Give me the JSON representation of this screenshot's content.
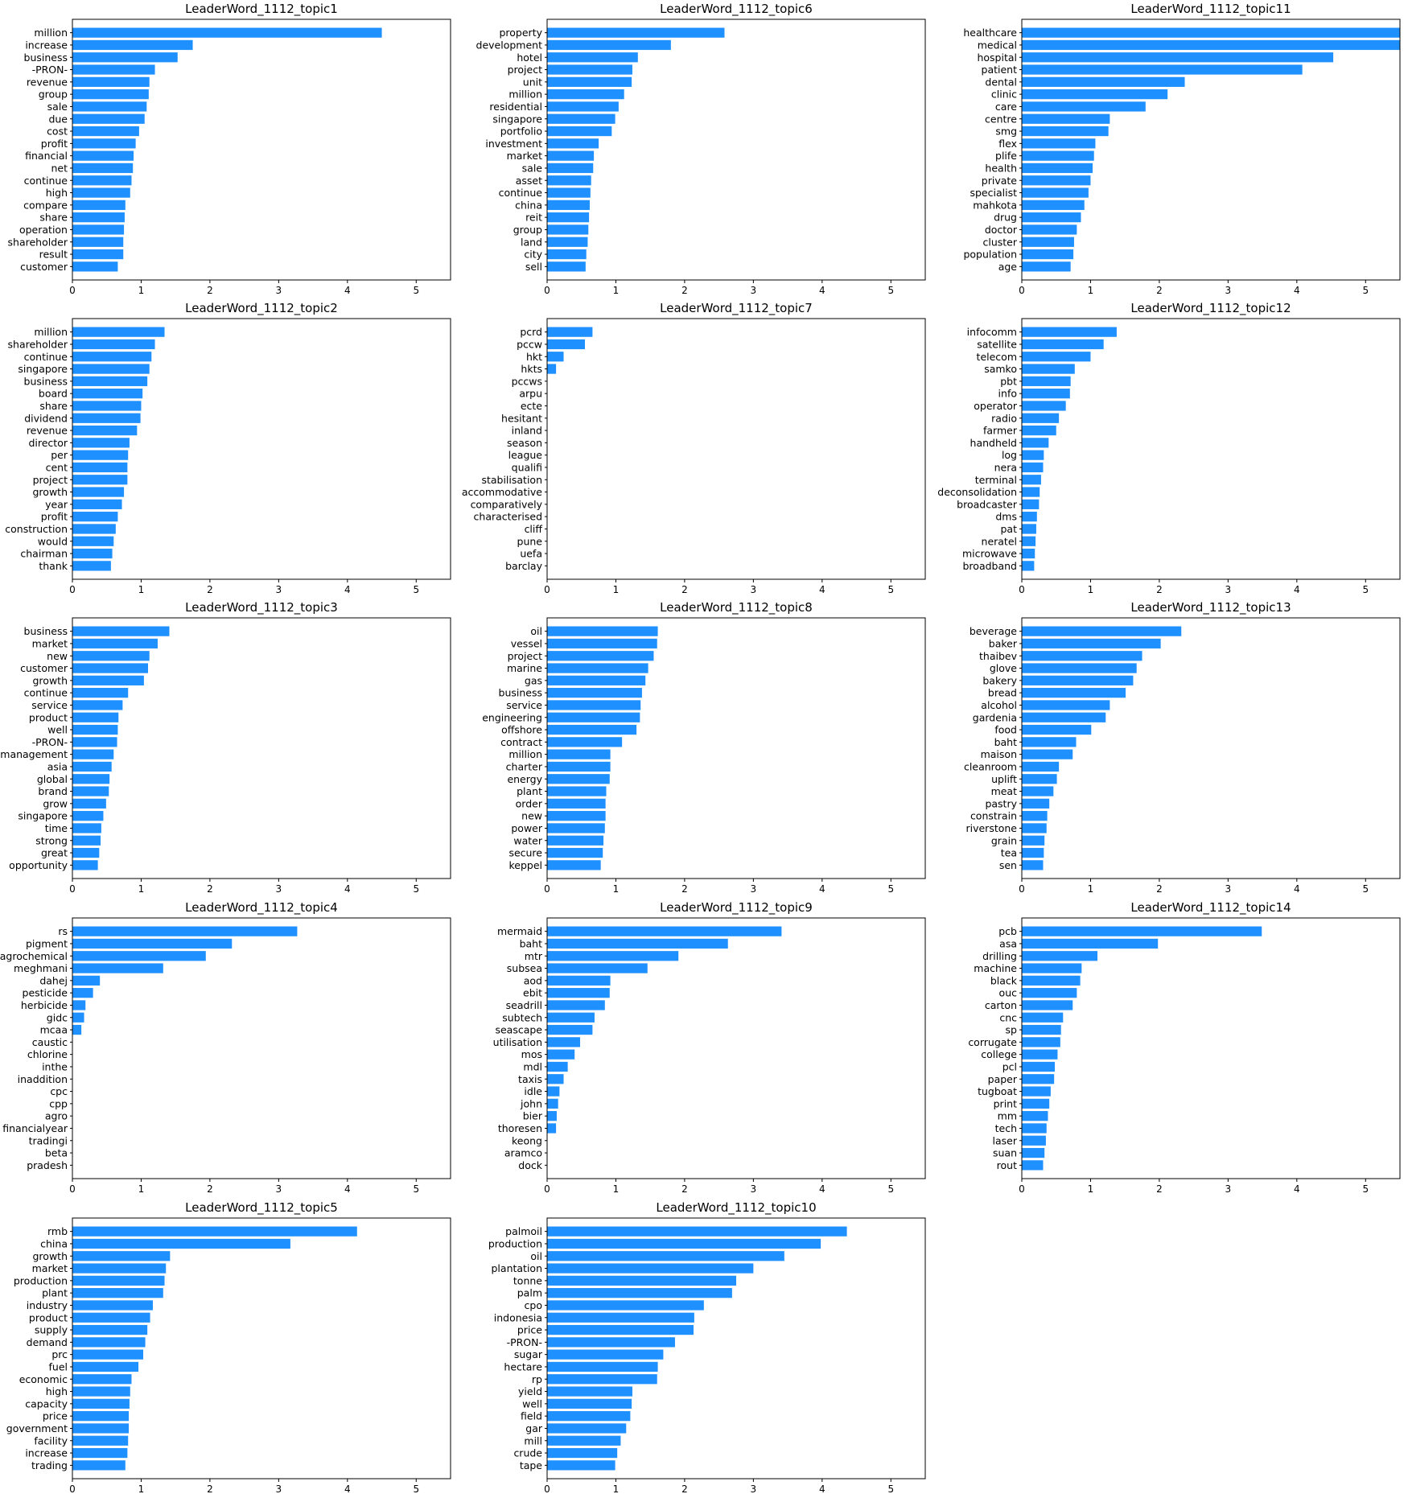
{
  "chart_data": [
    {
      "type": "bar",
      "orientation": "horizontal",
      "title": "LeaderWord_1112_topic1",
      "xlim": [
        0,
        5.5
      ],
      "xticks": [
        0,
        1,
        2,
        3,
        4,
        5
      ],
      "categories": [
        "million",
        "increase",
        "business",
        "-PRON-",
        "revenue",
        "group",
        "sale",
        "due",
        "cost",
        "profit",
        "financial",
        "net",
        "continue",
        "high",
        "compare",
        "share",
        "operation",
        "shareholder",
        "result",
        "customer"
      ],
      "values": [
        4.5,
        1.75,
        1.53,
        1.2,
        1.12,
        1.11,
        1.08,
        1.05,
        0.97,
        0.92,
        0.89,
        0.88,
        0.86,
        0.84,
        0.77,
        0.76,
        0.75,
        0.74,
        0.74,
        0.66
      ]
    },
    {
      "type": "bar",
      "orientation": "horizontal",
      "title": "LeaderWord_1112_topic6",
      "xlim": [
        0,
        5.5
      ],
      "xticks": [
        0,
        1,
        2,
        3,
        4,
        5
      ],
      "categories": [
        "property",
        "development",
        "hotel",
        "project",
        "unit",
        "million",
        "residential",
        "singapore",
        "portfolio",
        "investment",
        "market",
        "sale",
        "asset",
        "continue",
        "china",
        "reit",
        "group",
        "land",
        "city",
        "sell"
      ],
      "values": [
        2.58,
        1.8,
        1.32,
        1.24,
        1.23,
        1.12,
        1.04,
        0.99,
        0.94,
        0.75,
        0.68,
        0.67,
        0.64,
        0.63,
        0.62,
        0.61,
        0.6,
        0.59,
        0.57,
        0.56
      ]
    },
    {
      "type": "bar",
      "orientation": "horizontal",
      "title": "LeaderWord_1112_topic11",
      "xlim": [
        0,
        5.5
      ],
      "xticks": [
        0,
        1,
        2,
        3,
        4,
        5
      ],
      "categories": [
        "healthcare",
        "medical",
        "hospital",
        "patient",
        "dental",
        "clinic",
        "care",
        "centre",
        "smg",
        "flex",
        "plife",
        "health",
        "private",
        "specialist",
        "mahkota",
        "drug",
        "doctor",
        "cluster",
        "population",
        "age"
      ],
      "values": [
        5.6,
        5.6,
        4.53,
        4.08,
        2.37,
        2.12,
        1.8,
        1.28,
        1.26,
        1.07,
        1.05,
        1.03,
        1.0,
        0.97,
        0.91,
        0.86,
        0.8,
        0.76,
        0.75,
        0.71
      ]
    },
    {
      "type": "bar",
      "orientation": "horizontal",
      "title": "LeaderWord_1112_topic2",
      "xlim": [
        0,
        5.5
      ],
      "xticks": [
        0,
        1,
        2,
        3,
        4,
        5
      ],
      "categories": [
        "million",
        "shareholder",
        "continue",
        "singapore",
        "business",
        "board",
        "share",
        "dividend",
        "revenue",
        "director",
        "per",
        "cent",
        "project",
        "growth",
        "year",
        "profit",
        "construction",
        "would",
        "chairman",
        "thank"
      ],
      "values": [
        1.34,
        1.2,
        1.15,
        1.12,
        1.09,
        1.02,
        1.0,
        0.99,
        0.94,
        0.83,
        0.81,
        0.8,
        0.8,
        0.75,
        0.72,
        0.66,
        0.63,
        0.6,
        0.58,
        0.56
      ]
    },
    {
      "type": "bar",
      "orientation": "horizontal",
      "title": "LeaderWord_1112_topic7",
      "xlim": [
        0,
        5.5
      ],
      "xticks": [
        0,
        1,
        2,
        3,
        4,
        5
      ],
      "categories": [
        "pcrd",
        "pccw",
        "hkt",
        "hkts",
        "pccws",
        "arpu",
        "ecte",
        "hesitant",
        "inland",
        "season",
        "league",
        "qualifi",
        "stabilisation",
        "accommodative",
        "comparatively",
        "characterised",
        "cliff",
        "pune",
        "uefa",
        "barclay"
      ],
      "values": [
        0.66,
        0.55,
        0.24,
        0.13,
        0,
        0,
        0,
        0,
        0,
        0,
        0,
        0,
        0,
        0,
        0,
        0,
        0,
        0,
        0,
        0
      ]
    },
    {
      "type": "bar",
      "orientation": "horizontal",
      "title": "LeaderWord_1112_topic12",
      "xlim": [
        0,
        5.5
      ],
      "xticks": [
        0,
        1,
        2,
        3,
        4,
        5
      ],
      "categories": [
        "infocomm",
        "satellite",
        "telecom",
        "samko",
        "pbt",
        "info",
        "operator",
        "radio",
        "farmer",
        "handheld",
        "log",
        "nera",
        "terminal",
        "deconsolidation",
        "broadcaster",
        "dms",
        "pat",
        "neratel",
        "microwave",
        "broadband"
      ],
      "values": [
        1.38,
        1.19,
        1.0,
        0.77,
        0.71,
        0.7,
        0.64,
        0.54,
        0.5,
        0.39,
        0.32,
        0.31,
        0.28,
        0.26,
        0.25,
        0.22,
        0.21,
        0.2,
        0.19,
        0.18
      ]
    },
    {
      "type": "bar",
      "orientation": "horizontal",
      "title": "LeaderWord_1112_topic3",
      "xlim": [
        0,
        5.5
      ],
      "xticks": [
        0,
        1,
        2,
        3,
        4,
        5
      ],
      "categories": [
        "business",
        "market",
        "new",
        "customer",
        "growth",
        "continue",
        "service",
        "product",
        "well",
        "-PRON-",
        "management",
        "asia",
        "global",
        "brand",
        "grow",
        "singapore",
        "time",
        "strong",
        "great",
        "opportunity"
      ],
      "values": [
        1.41,
        1.24,
        1.12,
        1.1,
        1.04,
        0.81,
        0.73,
        0.67,
        0.66,
        0.65,
        0.6,
        0.57,
        0.54,
        0.53,
        0.49,
        0.45,
        0.42,
        0.41,
        0.39,
        0.37
      ]
    },
    {
      "type": "bar",
      "orientation": "horizontal",
      "title": "LeaderWord_1112_topic8",
      "xlim": [
        0,
        5.5
      ],
      "xticks": [
        0,
        1,
        2,
        3,
        4,
        5
      ],
      "categories": [
        "oil",
        "vessel",
        "project",
        "marine",
        "gas",
        "business",
        "service",
        "engineering",
        "offshore",
        "contract",
        "million",
        "charter",
        "energy",
        "plant",
        "order",
        "new",
        "power",
        "water",
        "secure",
        "keppel"
      ],
      "values": [
        1.61,
        1.6,
        1.55,
        1.47,
        1.43,
        1.38,
        1.36,
        1.35,
        1.3,
        1.09,
        0.92,
        0.92,
        0.91,
        0.86,
        0.85,
        0.85,
        0.84,
        0.82,
        0.81,
        0.78
      ]
    },
    {
      "type": "bar",
      "orientation": "horizontal",
      "title": "LeaderWord_1112_topic13",
      "xlim": [
        0,
        5.5
      ],
      "xticks": [
        0,
        1,
        2,
        3,
        4,
        5
      ],
      "categories": [
        "beverage",
        "baker",
        "thaibev",
        "glove",
        "bakery",
        "bread",
        "alcohol",
        "gardenia",
        "food",
        "baht",
        "maison",
        "cleanroom",
        "uplift",
        "meat",
        "pastry",
        "constrain",
        "riverstone",
        "grain",
        "tea",
        "sen"
      ],
      "values": [
        2.32,
        2.02,
        1.75,
        1.67,
        1.62,
        1.51,
        1.28,
        1.22,
        1.01,
        0.79,
        0.74,
        0.54,
        0.51,
        0.46,
        0.4,
        0.37,
        0.36,
        0.33,
        0.32,
        0.31
      ]
    },
    {
      "type": "bar",
      "orientation": "horizontal",
      "title": "LeaderWord_1112_topic4",
      "xlim": [
        0,
        5.5
      ],
      "xticks": [
        0,
        1,
        2,
        3,
        4,
        5
      ],
      "categories": [
        "rs",
        "pigment",
        "agrochemical",
        "meghmani",
        "dahej",
        "pesticide",
        "herbicide",
        "gidc",
        "mcaa",
        "caustic",
        "chlorine",
        "inthe",
        "inaddition",
        "cpc",
        "cpp",
        "agro",
        "financialyear",
        "tradingi",
        "beta",
        "pradesh"
      ],
      "values": [
        3.27,
        2.32,
        1.94,
        1.32,
        0.4,
        0.3,
        0.19,
        0.17,
        0.13,
        0,
        0,
        0,
        0,
        0,
        0,
        0,
        0,
        0,
        0,
        0
      ]
    },
    {
      "type": "bar",
      "orientation": "horizontal",
      "title": "LeaderWord_1112_topic9",
      "xlim": [
        0,
        5.5
      ],
      "xticks": [
        0,
        1,
        2,
        3,
        4,
        5
      ],
      "categories": [
        "mermaid",
        "baht",
        "mtr",
        "subsea",
        "aod",
        "ebit",
        "seadrill",
        "subtech",
        "seascape",
        "utilisation",
        "mos",
        "mdl",
        "taxis",
        "idle",
        "john",
        "bier",
        "thoresen",
        "keong",
        "aramco",
        "dock"
      ],
      "values": [
        3.41,
        2.63,
        1.91,
        1.46,
        0.92,
        0.91,
        0.84,
        0.69,
        0.66,
        0.48,
        0.4,
        0.3,
        0.24,
        0.18,
        0.16,
        0.14,
        0.13,
        0,
        0,
        0
      ]
    },
    {
      "type": "bar",
      "orientation": "horizontal",
      "title": "LeaderWord_1112_topic14",
      "xlim": [
        0,
        5.5
      ],
      "xticks": [
        0,
        1,
        2,
        3,
        4,
        5
      ],
      "categories": [
        "pcb",
        "asa",
        "drilling",
        "machine",
        "black",
        "ouc",
        "carton",
        "cnc",
        "sp",
        "corrugate",
        "college",
        "pcl",
        "paper",
        "tugboat",
        "print",
        "mm",
        "tech",
        "laser",
        "suan",
        "rout"
      ],
      "values": [
        3.49,
        1.98,
        1.1,
        0.87,
        0.85,
        0.8,
        0.74,
        0.6,
        0.57,
        0.56,
        0.52,
        0.48,
        0.47,
        0.42,
        0.4,
        0.38,
        0.36,
        0.35,
        0.33,
        0.31
      ]
    },
    {
      "type": "bar",
      "orientation": "horizontal",
      "title": "LeaderWord_1112_topic5",
      "xlim": [
        0,
        5.5
      ],
      "xticks": [
        0,
        1,
        2,
        3,
        4,
        5
      ],
      "categories": [
        "rmb",
        "china",
        "growth",
        "market",
        "production",
        "plant",
        "industry",
        "product",
        "supply",
        "demand",
        "prc",
        "fuel",
        "economic",
        "high",
        "capacity",
        "price",
        "government",
        "facility",
        "increase",
        "trading"
      ],
      "values": [
        4.14,
        3.17,
        1.42,
        1.36,
        1.34,
        1.32,
        1.17,
        1.13,
        1.09,
        1.06,
        1.03,
        0.96,
        0.86,
        0.84,
        0.83,
        0.82,
        0.82,
        0.81,
        0.8,
        0.77
      ]
    },
    {
      "type": "bar",
      "orientation": "horizontal",
      "title": "LeaderWord_1112_topic10",
      "xlim": [
        0,
        5.5
      ],
      "xticks": [
        0,
        1,
        2,
        3,
        4,
        5
      ],
      "categories": [
        "palmoil",
        "production",
        "oil",
        "plantation",
        "tonne",
        "palm",
        "cpo",
        "indonesia",
        "price",
        "-PRON-",
        "sugar",
        "hectare",
        "rp",
        "yield",
        "well",
        "field",
        "gar",
        "mill",
        "crude",
        "tape"
      ],
      "values": [
        4.36,
        3.98,
        3.45,
        3.0,
        2.75,
        2.69,
        2.28,
        2.14,
        2.13,
        1.86,
        1.69,
        1.61,
        1.6,
        1.24,
        1.23,
        1.21,
        1.15,
        1.07,
        1.02,
        0.99
      ]
    }
  ]
}
